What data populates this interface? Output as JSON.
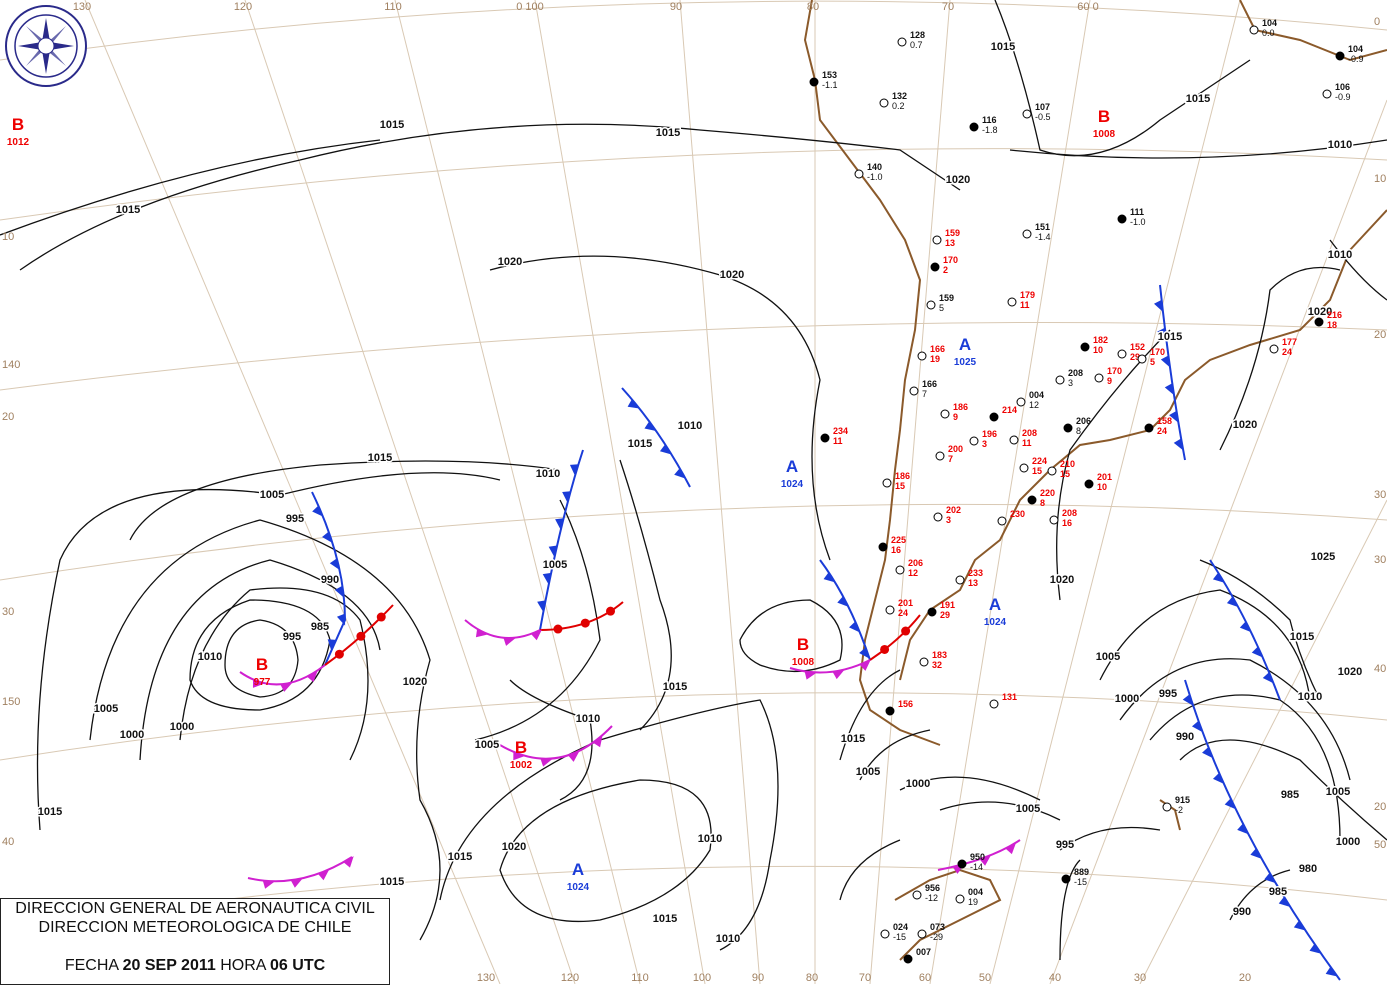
{
  "title_box": {
    "line1": "DIRECCION GENERAL DE AERONAUTICA CIVIL",
    "line2": "DIRECCION METEOROLOGICA DE CHILE",
    "date_label": "FECHA",
    "date": "20 SEP 2011",
    "hour_label": "HORA",
    "hour": "06 UTC"
  },
  "logo": {
    "top_text": "DIRECCION METEOROLOGICA",
    "bottom_text": "CHILE"
  },
  "colors": {
    "low": "#e00000",
    "high": "#1a3cd8",
    "cold_front": "#1a3cd8",
    "warm_front": "#e00000",
    "occluded_front": "#d020d0",
    "coast": "#8b5a2b",
    "grid": "#d9c9b4"
  },
  "grid_labels": {
    "top": [
      "130",
      "120",
      "110",
      "0 100",
      "90",
      "80",
      "70",
      "60 0"
    ],
    "bottom": [
      "130",
      "120",
      "110",
      "100",
      "90",
      "80",
      "70",
      "60",
      "50",
      "40",
      "30",
      "20"
    ],
    "left": [
      "10",
      "140",
      "20",
      "150",
      "30",
      "40"
    ],
    "right": [
      "0",
      "10",
      "20",
      "30",
      "30",
      "40",
      "20",
      "50"
    ]
  },
  "pressure_centers": [
    {
      "type": "B",
      "value": "1012"
    },
    {
      "type": "B",
      "value": "977"
    },
    {
      "type": "B",
      "value": "1002"
    },
    {
      "type": "B",
      "value": "1008"
    },
    {
      "type": "B",
      "value": "1008"
    },
    {
      "type": "A",
      "value": "1025"
    },
    {
      "type": "A",
      "value": "1024"
    },
    {
      "type": "A",
      "value": "1024"
    },
    {
      "type": "A",
      "value": "1024"
    }
  ],
  "isobar_labels": [
    "1015",
    "1015",
    "1015",
    "1020",
    "1020",
    "1015",
    "1010",
    "1005",
    "995",
    "990",
    "985",
    "995",
    "1010",
    "1005",
    "1000",
    "1000",
    "1015",
    "1005",
    "1010",
    "1020",
    "1015",
    "1020",
    "1015",
    "1010",
    "1015",
    "1010",
    "1005",
    "1000",
    "995",
    "990",
    "985",
    "980",
    "1000",
    "1005",
    "1015",
    "1020",
    "1010",
    "1005",
    "1015",
    "1010",
    "1015",
    "1020",
    "1010",
    "1025",
    "1015",
    "1020",
    "1020",
    "1015",
    "1005",
    "1000",
    "995",
    "990",
    "985",
    "1020",
    "1015",
    "1015",
    "1010",
    "1005"
  ],
  "stations": [
    {
      "id": "153",
      "val": "-1.1"
    },
    {
      "id": "132",
      "val": "0.2"
    },
    {
      "id": "128",
      "val": "0.7"
    },
    {
      "id": "116",
      "val": "-1.8"
    },
    {
      "id": "107",
      "val": "-0.5"
    },
    {
      "id": "104",
      "val": "0.0"
    },
    {
      "id": "104",
      "val": "-0.9"
    },
    {
      "id": "106",
      "val": "-0.9"
    },
    {
      "id": "140",
      "val": "-1.0"
    },
    {
      "id": "111",
      "val": "-1.0"
    },
    {
      "id": "151",
      "val": "-1.4"
    },
    {
      "id": "159",
      "val": "13"
    },
    {
      "id": "170",
      "val": "2"
    },
    {
      "id": "179",
      "val": "11"
    },
    {
      "id": "166",
      "val": "19"
    },
    {
      "id": "182",
      "val": "10"
    },
    {
      "id": "152",
      "val": "29"
    },
    {
      "id": "170",
      "val": "9"
    },
    {
      "id": "216",
      "val": "18"
    },
    {
      "id": "177",
      "val": "24"
    },
    {
      "id": "170",
      "val": "5"
    },
    {
      "id": "234",
      "val": "11"
    },
    {
      "id": "186",
      "val": "9"
    },
    {
      "id": "196",
      "val": "3"
    },
    {
      "id": "158",
      "val": "24"
    },
    {
      "id": "208",
      "val": "11"
    },
    {
      "id": "200",
      "val": "7"
    },
    {
      "id": "214",
      "val": ""
    },
    {
      "id": "224",
      "val": "15"
    },
    {
      "id": "210",
      "val": "15"
    },
    {
      "id": "201",
      "val": "10"
    },
    {
      "id": "186",
      "val": "15"
    },
    {
      "id": "202",
      "val": "3"
    },
    {
      "id": "220",
      "val": "8"
    },
    {
      "id": "208",
      "val": "16"
    },
    {
      "id": "230",
      "val": ""
    },
    {
      "id": "225",
      "val": "16"
    },
    {
      "id": "206",
      "val": "12"
    },
    {
      "id": "233",
      "val": "13"
    },
    {
      "id": "191",
      "val": "29"
    },
    {
      "id": "201",
      "val": "24"
    },
    {
      "id": "183",
      "val": "32"
    },
    {
      "id": "156",
      "val": ""
    },
    {
      "id": "131",
      "val": ""
    },
    {
      "id": "915",
      "val": "-2"
    },
    {
      "id": "950",
      "val": "-14"
    },
    {
      "id": "956",
      "val": "-12"
    },
    {
      "id": "004",
      "val": "19"
    },
    {
      "id": "889",
      "val": "-15"
    },
    {
      "id": "024",
      "val": "-15"
    },
    {
      "id": "073",
      "val": "-29"
    },
    {
      "id": "007",
      "val": ""
    },
    {
      "id": "004",
      "val": "12"
    },
    {
      "id": "166",
      "val": "7"
    },
    {
      "id": "206",
      "val": "8"
    },
    {
      "id": "208",
      "val": "3"
    },
    {
      "id": "159",
      "val": "5"
    }
  ]
}
